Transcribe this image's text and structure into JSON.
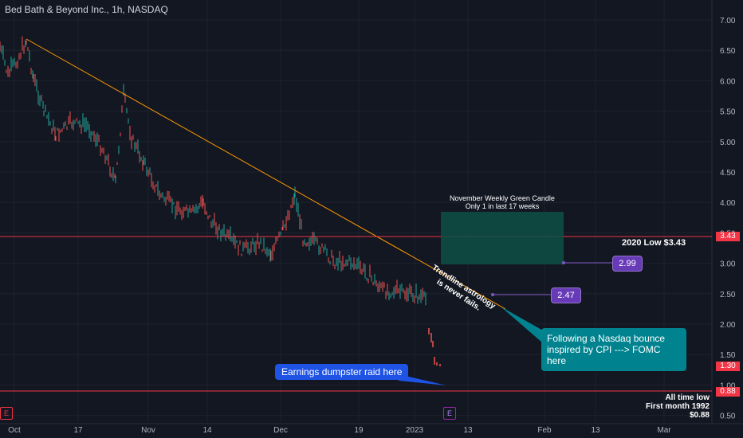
{
  "header": {
    "title": "Bed Bath & Beyond Inc., 1h, NASDAQ"
  },
  "price_axis": {
    "labels": [
      "7.00",
      "6.50",
      "6.00",
      "5.50",
      "5.00",
      "4.50",
      "4.00",
      "3.50",
      "3.00",
      "2.50",
      "2.00",
      "1.50",
      "1.00",
      "0.50"
    ]
  },
  "time_axis": {
    "labels": [
      "Oct",
      "17",
      "Nov",
      "14",
      "Dec",
      "19",
      "2023",
      "13",
      "Feb",
      "13",
      "Mar"
    ]
  },
  "colors": {
    "background": "#131722",
    "up": "#26a69a",
    "down": "#ef5350",
    "trendline": "#ff9800",
    "level_line": "#f23645",
    "purple": "#673ab7",
    "teal_callout": "#00897b",
    "blue_callout": "#1e53e5",
    "box": "#0e4f45"
  },
  "levels": {
    "low_2020_label": "2020 Low $3.43",
    "low_2020_value": "3.43",
    "atl_line1": "All time low",
    "atl_line2": "First month 1992",
    "atl_line3": "$0.88",
    "atl_value": "0.88",
    "last_price": "1.30"
  },
  "annotations": {
    "box_title_line1": "November Weekly Green Candle",
    "box_title_line2": "Only 1 in last 17 weeks",
    "trendline_text_line1": "Trendline astrology",
    "trendline_text_line2": "is never fails.",
    "price_299": "2.99",
    "price_247": "2.47",
    "nasdaq_line1": "Following a Nasdaq bounce",
    "nasdaq_line2": "inspired by CPI ---> FOMC here",
    "earnings": "Earnings dumpster raid here"
  },
  "events": {
    "earnings_marker": "E"
  }
}
